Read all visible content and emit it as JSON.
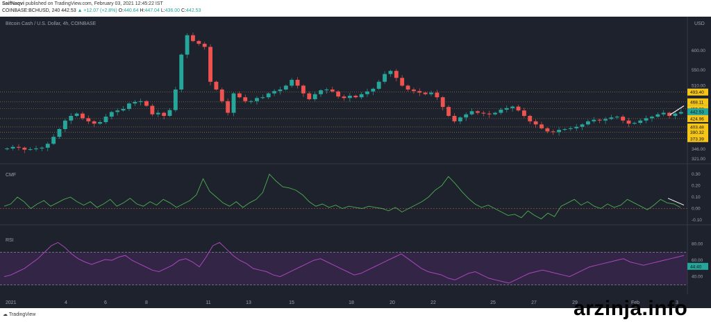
{
  "header": {
    "author": "SaifNaqvi",
    "published": "published on TradingView.com, February 03, 2021 12:45:22 IST",
    "symbol": "COINBASE:BCHUSD, 240",
    "last": "442.53",
    "change": "▲ +12.07 (+2.8%)",
    "o_label": "O:",
    "o_value": "440.64",
    "h_label": "H:",
    "h_value": "447.04",
    "l_label": "L:",
    "l_value": "436.00",
    "c_label": "C:",
    "c_value": "442.53"
  },
  "footer": {
    "brand": "TradingView",
    "watermark": "arzinja.info"
  },
  "chart_data": {
    "type": "candlestick",
    "title": "Bitcoin Cash / U.S. Dollar, 4h, COINBASE",
    "currency": "USD",
    "x_ticks": [
      "2021",
      "4",
      "6",
      "8",
      "11",
      "13",
      "15",
      "18",
      "20",
      "22",
      "25",
      "27",
      "29",
      "Feb",
      "3"
    ],
    "y_ticks": [
      "600.00",
      "550.00",
      "510.00",
      "346.00",
      "321.00"
    ],
    "price_labels": [
      {
        "value": "493.40",
        "color": "#f5c518"
      },
      {
        "value": "468.11",
        "color": "#f5c518"
      },
      {
        "value": "450.33",
        "color": "#f5c518"
      },
      {
        "value": "442.53",
        "color": "#26a69a"
      },
      {
        "value": "44:40",
        "color": "#26a69a"
      },
      {
        "value": "424.96",
        "color": "#f5c518"
      },
      {
        "value": "403.48",
        "color": "#f5c518"
      },
      {
        "value": "390.32",
        "color": "#f5c518"
      },
      {
        "value": "373.39",
        "color": "#f5c518"
      }
    ],
    "support_resistance": [
      493.4,
      468.11,
      450.33,
      424.96,
      403.48,
      390.32,
      373.39
    ],
    "close_series": [
      348,
      352,
      350,
      345,
      346,
      348,
      350,
      360,
      378,
      398,
      420,
      432,
      438,
      426,
      418,
      412,
      416,
      430,
      442,
      446,
      450,
      464,
      468,
      470,
      458,
      436,
      440,
      432,
      447,
      500,
      590,
      640,
      625,
      618,
      610,
      520,
      500,
      470,
      440,
      490,
      480,
      470,
      470,
      478,
      480,
      490,
      496,
      500,
      510,
      525,
      510,
      490,
      475,
      488,
      498,
      500,
      495,
      482,
      478,
      484,
      480,
      488,
      495,
      502,
      520,
      540,
      548,
      530,
      510,
      500,
      496,
      492,
      488,
      492,
      480,
      455,
      432,
      418,
      428,
      436,
      444,
      440,
      438,
      436,
      440,
      448,
      452,
      456,
      446,
      432,
      418,
      410,
      400,
      392,
      390,
      396,
      398,
      400,
      404,
      410,
      418,
      422,
      420,
      424,
      428,
      430,
      420,
      412,
      414,
      420,
      426,
      430,
      436,
      440,
      432,
      438,
      442
    ],
    "indicators": [
      {
        "name": "CMF",
        "y_ticks": [
          "0.30",
          "0.20",
          "0.10",
          "0.00",
          "-0.10"
        ],
        "color": "#4caf50",
        "values": [
          0.02,
          0.04,
          0.1,
          0.06,
          0.0,
          0.04,
          0.07,
          0.02,
          0.05,
          0.08,
          0.1,
          0.06,
          0.03,
          0.06,
          0.01,
          0.04,
          0.08,
          0.02,
          0.05,
          0.09,
          0.04,
          0.02,
          0.06,
          0.03,
          0.08,
          0.05,
          0.01,
          0.04,
          0.07,
          0.12,
          0.26,
          0.15,
          0.1,
          0.05,
          0.02,
          0.06,
          0.01,
          0.05,
          0.08,
          0.14,
          0.3,
          0.24,
          0.19,
          0.18,
          0.16,
          0.12,
          0.06,
          0.02,
          0.04,
          0.01,
          0.03,
          0.0,
          0.02,
          0.01,
          0.0,
          0.02,
          0.01,
          0.0,
          -0.02,
          0.01,
          -0.03,
          0.0,
          0.03,
          0.06,
          0.1,
          0.16,
          0.2,
          0.28,
          0.22,
          0.15,
          0.09,
          0.04,
          0.01,
          0.03,
          0.0,
          -0.03,
          -0.06,
          -0.05,
          -0.08,
          -0.02,
          -0.06,
          -0.09,
          -0.04,
          -0.07,
          0.02,
          0.05,
          0.08,
          0.03,
          0.06,
          0.02,
          0.0,
          0.04,
          0.01,
          0.03,
          0.08,
          0.05,
          0.02,
          -0.01,
          0.03,
          0.08,
          0.05,
          0.04,
          0.01
        ]
      },
      {
        "name": "RSI",
        "y_ticks": [
          "80.00",
          "60.00",
          "40.00"
        ],
        "color": "#ab47bc",
        "upper": 70,
        "lower": 30,
        "values": [
          40,
          42,
          46,
          50,
          56,
          62,
          70,
          78,
          82,
          76,
          68,
          62,
          58,
          55,
          58,
          61,
          60,
          64,
          66,
          60,
          56,
          52,
          48,
          46,
          50,
          54,
          60,
          62,
          58,
          52,
          64,
          78,
          82,
          74,
          66,
          60,
          56,
          50,
          48,
          46,
          42,
          40,
          44,
          48,
          52,
          56,
          60,
          62,
          58,
          54,
          50,
          46,
          42,
          44,
          48,
          52,
          56,
          60,
          64,
          68,
          62,
          56,
          50,
          46,
          44,
          42,
          38,
          36,
          40,
          44,
          46,
          42,
          38,
          36,
          34,
          32,
          36,
          40,
          44,
          46,
          48,
          46,
          44,
          42,
          40,
          44,
          48,
          52,
          54,
          56,
          58,
          60,
          62,
          58,
          56,
          54,
          56,
          58,
          60,
          62,
          64,
          66
        ]
      }
    ]
  }
}
